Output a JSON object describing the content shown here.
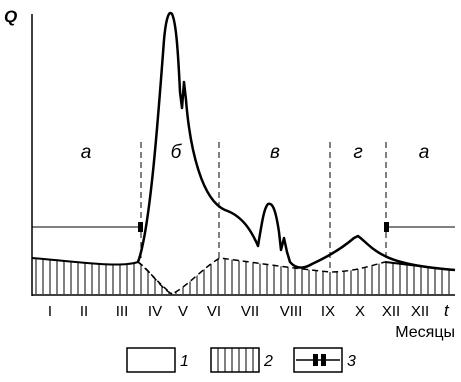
{
  "axis": {
    "y_label": "Q",
    "x_label": "t",
    "months_caption": "Месяцы",
    "months": [
      "I",
      "II",
      "III",
      "IV",
      "V",
      "VI",
      "VII",
      "VIII",
      "IX",
      "X",
      "XII",
      "XII"
    ]
  },
  "phases": [
    "а",
    "б",
    "в",
    "г",
    "а"
  ],
  "legend": [
    {
      "id": "total-flow",
      "label": "1"
    },
    {
      "id": "groundwater-flow",
      "label": "2"
    },
    {
      "id": "low-water-period",
      "label": "3"
    }
  ]
}
